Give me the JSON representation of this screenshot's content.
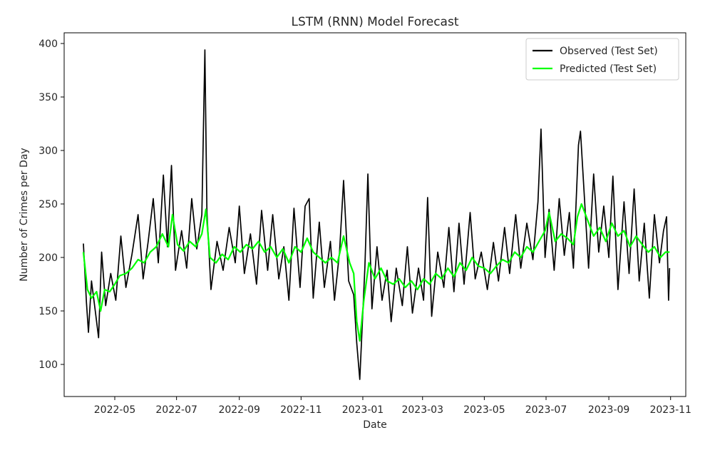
{
  "chart_data": {
    "type": "line",
    "title": "LSTM (RNN) Model Forecast",
    "xlabel": "Date",
    "ylabel": "Number of Crimes per Day",
    "x_ticks": [
      "2022-05",
      "2022-07",
      "2022-09",
      "2022-11",
      "2023-01",
      "2023-03",
      "2023-05",
      "2023-07",
      "2023-09",
      "2023-11"
    ],
    "y_ticks": [
      100,
      150,
      200,
      250,
      300,
      350,
      400
    ],
    "xlim": [
      "2022-03-12",
      "2023-11-16"
    ],
    "ylim": [
      70,
      410
    ],
    "grid": false,
    "legend_position": "top-right",
    "series": [
      {
        "name": "Observed (Test Set)",
        "color": "#000000",
        "points": [
          [
            "2022-03-31",
            213
          ],
          [
            "2022-04-03",
            158
          ],
          [
            "2022-04-05",
            130
          ],
          [
            "2022-04-08",
            178
          ],
          [
            "2022-04-12",
            148
          ],
          [
            "2022-04-15",
            125
          ],
          [
            "2022-04-18",
            205
          ],
          [
            "2022-04-22",
            155
          ],
          [
            "2022-04-27",
            185
          ],
          [
            "2022-05-02",
            160
          ],
          [
            "2022-05-07",
            220
          ],
          [
            "2022-05-12",
            172
          ],
          [
            "2022-05-18",
            203
          ],
          [
            "2022-05-24",
            240
          ],
          [
            "2022-05-29",
            180
          ],
          [
            "2022-06-03",
            215
          ],
          [
            "2022-06-08",
            255
          ],
          [
            "2022-06-13",
            195
          ],
          [
            "2022-06-18",
            277
          ],
          [
            "2022-06-22",
            210
          ],
          [
            "2022-06-26",
            286
          ],
          [
            "2022-06-30",
            188
          ],
          [
            "2022-07-06",
            225
          ],
          [
            "2022-07-11",
            190
          ],
          [
            "2022-07-16",
            255
          ],
          [
            "2022-07-21",
            208
          ],
          [
            "2022-07-26",
            240
          ],
          [
            "2022-07-29",
            394
          ],
          [
            "2022-07-31",
            243
          ],
          [
            "2022-08-04",
            170
          ],
          [
            "2022-08-10",
            215
          ],
          [
            "2022-08-16",
            188
          ],
          [
            "2022-08-22",
            228
          ],
          [
            "2022-08-28",
            195
          ],
          [
            "2022-09-01",
            248
          ],
          [
            "2022-09-06",
            185
          ],
          [
            "2022-09-12",
            222
          ],
          [
            "2022-09-18",
            175
          ],
          [
            "2022-09-23",
            244
          ],
          [
            "2022-09-29",
            188
          ],
          [
            "2022-10-04",
            240
          ],
          [
            "2022-10-10",
            180
          ],
          [
            "2022-10-15",
            210
          ],
          [
            "2022-10-20",
            160
          ],
          [
            "2022-10-25",
            246
          ],
          [
            "2022-10-31",
            172
          ],
          [
            "2022-11-05",
            248
          ],
          [
            "2022-11-09",
            255
          ],
          [
            "2022-11-13",
            162
          ],
          [
            "2022-11-19",
            233
          ],
          [
            "2022-11-24",
            172
          ],
          [
            "2022-11-30",
            215
          ],
          [
            "2022-12-04",
            160
          ],
          [
            "2022-12-09",
            205
          ],
          [
            "2022-12-13",
            272
          ],
          [
            "2022-12-18",
            178
          ],
          [
            "2022-12-23",
            165
          ],
          [
            "2022-12-26",
            120
          ],
          [
            "2022-12-29",
            86
          ],
          [
            "2023-01-03",
            190
          ],
          [
            "2023-01-06",
            278
          ],
          [
            "2023-01-10",
            152
          ],
          [
            "2023-01-15",
            210
          ],
          [
            "2023-01-20",
            160
          ],
          [
            "2023-01-25",
            188
          ],
          [
            "2023-01-29",
            140
          ],
          [
            "2023-02-03",
            190
          ],
          [
            "2023-02-09",
            155
          ],
          [
            "2023-02-14",
            210
          ],
          [
            "2023-02-19",
            148
          ],
          [
            "2023-02-25",
            190
          ],
          [
            "2023-03-02",
            160
          ],
          [
            "2023-03-06",
            256
          ],
          [
            "2023-03-10",
            145
          ],
          [
            "2023-03-16",
            205
          ],
          [
            "2023-03-22",
            172
          ],
          [
            "2023-03-27",
            228
          ],
          [
            "2023-04-01",
            168
          ],
          [
            "2023-04-06",
            232
          ],
          [
            "2023-04-11",
            175
          ],
          [
            "2023-04-17",
            242
          ],
          [
            "2023-04-22",
            180
          ],
          [
            "2023-04-28",
            205
          ],
          [
            "2023-05-04",
            170
          ],
          [
            "2023-05-10",
            214
          ],
          [
            "2023-05-15",
            178
          ],
          [
            "2023-05-21",
            228
          ],
          [
            "2023-05-26",
            185
          ],
          [
            "2023-06-01",
            240
          ],
          [
            "2023-06-06",
            190
          ],
          [
            "2023-06-12",
            232
          ],
          [
            "2023-06-18",
            198
          ],
          [
            "2023-06-23",
            252
          ],
          [
            "2023-06-26",
            320
          ],
          [
            "2023-06-30",
            200
          ],
          [
            "2023-07-04",
            245
          ],
          [
            "2023-07-09",
            188
          ],
          [
            "2023-07-14",
            255
          ],
          [
            "2023-07-19",
            202
          ],
          [
            "2023-07-24",
            242
          ],
          [
            "2023-07-28",
            190
          ],
          [
            "2023-08-02",
            305
          ],
          [
            "2023-08-04",
            318
          ],
          [
            "2023-08-07",
            270
          ],
          [
            "2023-08-12",
            190
          ],
          [
            "2023-08-17",
            278
          ],
          [
            "2023-08-22",
            205
          ],
          [
            "2023-08-27",
            248
          ],
          [
            "2023-09-01",
            200
          ],
          [
            "2023-09-05",
            276
          ],
          [
            "2023-09-10",
            170
          ],
          [
            "2023-09-16",
            252
          ],
          [
            "2023-09-21",
            185
          ],
          [
            "2023-09-26",
            264
          ],
          [
            "2023-10-01",
            178
          ],
          [
            "2023-10-06",
            232
          ],
          [
            "2023-10-11",
            162
          ],
          [
            "2023-10-16",
            240
          ],
          [
            "2023-10-21",
            195
          ],
          [
            "2023-10-25",
            225
          ],
          [
            "2023-10-28",
            238
          ],
          [
            "2023-10-30",
            160
          ],
          [
            "2023-10-31",
            190
          ]
        ]
      },
      {
        "name": "Predicted (Test Set)",
        "color": "#00ff00",
        "points": [
          [
            "2022-03-31",
            205
          ],
          [
            "2022-04-04",
            170
          ],
          [
            "2022-04-08",
            162
          ],
          [
            "2022-04-13",
            168
          ],
          [
            "2022-04-17",
            150
          ],
          [
            "2022-04-21",
            170
          ],
          [
            "2022-04-26",
            168
          ],
          [
            "2022-05-01",
            175
          ],
          [
            "2022-05-06",
            183
          ],
          [
            "2022-05-12",
            185
          ],
          [
            "2022-05-18",
            190
          ],
          [
            "2022-05-24",
            198
          ],
          [
            "2022-05-30",
            195
          ],
          [
            "2022-06-05",
            205
          ],
          [
            "2022-06-11",
            210
          ],
          [
            "2022-06-17",
            222
          ],
          [
            "2022-06-23",
            210
          ],
          [
            "2022-06-27",
            240
          ],
          [
            "2022-07-02",
            212
          ],
          [
            "2022-07-08",
            206
          ],
          [
            "2022-07-14",
            215
          ],
          [
            "2022-07-20",
            210
          ],
          [
            "2022-07-26",
            222
          ],
          [
            "2022-07-30",
            245
          ],
          [
            "2022-08-03",
            200
          ],
          [
            "2022-08-09",
            195
          ],
          [
            "2022-08-15",
            203
          ],
          [
            "2022-08-21",
            198
          ],
          [
            "2022-08-27",
            210
          ],
          [
            "2022-09-02",
            205
          ],
          [
            "2022-09-08",
            212
          ],
          [
            "2022-09-14",
            208
          ],
          [
            "2022-09-20",
            215
          ],
          [
            "2022-09-26",
            205
          ],
          [
            "2022-10-02",
            210
          ],
          [
            "2022-10-08",
            200
          ],
          [
            "2022-10-14",
            208
          ],
          [
            "2022-10-20",
            195
          ],
          [
            "2022-10-26",
            210
          ],
          [
            "2022-11-01",
            205
          ],
          [
            "2022-11-07",
            218
          ],
          [
            "2022-11-13",
            205
          ],
          [
            "2022-11-19",
            200
          ],
          [
            "2022-11-25",
            195
          ],
          [
            "2022-12-01",
            200
          ],
          [
            "2022-12-07",
            195
          ],
          [
            "2022-12-13",
            220
          ],
          [
            "2022-12-19",
            195
          ],
          [
            "2022-12-23",
            185
          ],
          [
            "2022-12-26",
            140
          ],
          [
            "2022-12-29",
            122
          ],
          [
            "2023-01-02",
            160
          ],
          [
            "2023-01-07",
            195
          ],
          [
            "2023-01-13",
            180
          ],
          [
            "2023-01-19",
            190
          ],
          [
            "2023-01-25",
            178
          ],
          [
            "2023-01-31",
            175
          ],
          [
            "2023-02-06",
            180
          ],
          [
            "2023-02-12",
            172
          ],
          [
            "2023-02-18",
            178
          ],
          [
            "2023-02-24",
            170
          ],
          [
            "2023-03-02",
            180
          ],
          [
            "2023-03-08",
            175
          ],
          [
            "2023-03-14",
            185
          ],
          [
            "2023-03-20",
            180
          ],
          [
            "2023-03-26",
            190
          ],
          [
            "2023-04-01",
            182
          ],
          [
            "2023-04-07",
            195
          ],
          [
            "2023-04-13",
            188
          ],
          [
            "2023-04-19",
            200
          ],
          [
            "2023-04-25",
            192
          ],
          [
            "2023-05-01",
            190
          ],
          [
            "2023-05-07",
            185
          ],
          [
            "2023-05-13",
            192
          ],
          [
            "2023-05-19",
            198
          ],
          [
            "2023-05-25",
            195
          ],
          [
            "2023-05-31",
            205
          ],
          [
            "2023-06-06",
            200
          ],
          [
            "2023-06-12",
            210
          ],
          [
            "2023-06-18",
            205
          ],
          [
            "2023-06-24",
            215
          ],
          [
            "2023-06-30",
            225
          ],
          [
            "2023-07-04",
            242
          ],
          [
            "2023-07-10",
            215
          ],
          [
            "2023-07-16",
            222
          ],
          [
            "2023-07-22",
            218
          ],
          [
            "2023-07-28",
            212
          ],
          [
            "2023-08-01",
            238
          ],
          [
            "2023-08-05",
            250
          ],
          [
            "2023-08-11",
            235
          ],
          [
            "2023-08-17",
            220
          ],
          [
            "2023-08-23",
            228
          ],
          [
            "2023-08-29",
            215
          ],
          [
            "2023-09-04",
            232
          ],
          [
            "2023-09-10",
            220
          ],
          [
            "2023-09-16",
            225
          ],
          [
            "2023-09-22",
            210
          ],
          [
            "2023-09-28",
            220
          ],
          [
            "2023-10-04",
            212
          ],
          [
            "2023-10-10",
            205
          ],
          [
            "2023-10-16",
            210
          ],
          [
            "2023-10-22",
            200
          ],
          [
            "2023-10-27",
            205
          ],
          [
            "2023-10-31",
            205
          ]
        ]
      }
    ]
  }
}
